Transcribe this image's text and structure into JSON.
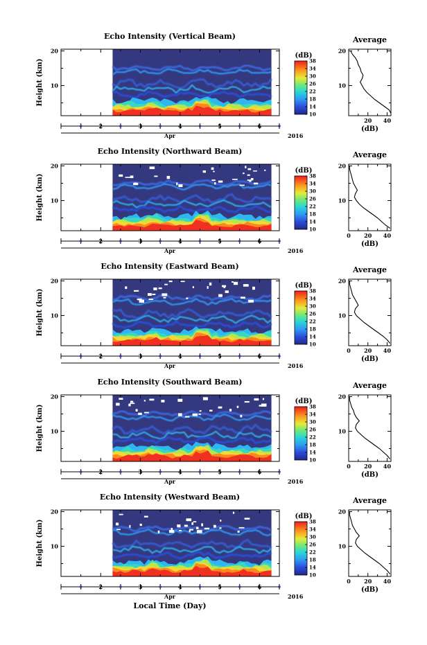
{
  "chart_data": [
    {
      "type": "heatmap",
      "title": "Echo Intensity (Vertical Beam)",
      "ylabel": "Height (km)",
      "x_month": "Apr",
      "x_year": "2016",
      "x_ticks": [
        "2",
        "3",
        "4",
        "5",
        "6"
      ],
      "y_ticks": [
        "10",
        "20"
      ],
      "xlim": [
        1,
        6.5
      ],
      "ylim": [
        1.3,
        20.5
      ],
      "data_start": 2.3,
      "data_end": 6.3,
      "colorbar": {
        "unit": "(dB)",
        "ticks": [
          "10",
          "14",
          "18",
          "22",
          "26",
          "30",
          "34",
          "38"
        ],
        "range": [
          10,
          38
        ]
      },
      "average": {
        "title": "Average",
        "xlabel": "(dB)",
        "x_ticks": [
          "20",
          "40"
        ],
        "y_ticks": [
          "10",
          "20"
        ],
        "xlim": [
          0,
          44
        ],
        "profile": [
          [
            20,
            2
          ],
          [
            19,
            4
          ],
          [
            18,
            7
          ],
          [
            17,
            9
          ],
          [
            16,
            10
          ],
          [
            15,
            12
          ],
          [
            14,
            13
          ],
          [
            13.5,
            14
          ],
          [
            13,
            15
          ],
          [
            12,
            14
          ],
          [
            11,
            12
          ],
          [
            10,
            14
          ],
          [
            9,
            16
          ],
          [
            8,
            19
          ],
          [
            7,
            23
          ],
          [
            6,
            27
          ],
          [
            5,
            32
          ],
          [
            4,
            37
          ],
          [
            3,
            42
          ],
          [
            2,
            44
          ]
        ]
      }
    },
    {
      "type": "heatmap",
      "title": "Echo Intensity (Northward Beam)",
      "ylabel": "Height (km)",
      "x_month": "Apr",
      "x_year": "2016",
      "x_ticks": [
        "2",
        "3",
        "4",
        "5",
        "6"
      ],
      "y_ticks": [
        "10",
        "20"
      ],
      "xlim": [
        1,
        6.5
      ],
      "ylim": [
        1.3,
        20.5
      ],
      "data_start": 2.3,
      "data_end": 6.3,
      "colorbar": {
        "unit": "(dB)",
        "ticks": [
          "10",
          "14",
          "18",
          "22",
          "26",
          "30",
          "34",
          "38"
        ],
        "range": [
          10,
          38
        ]
      },
      "average": {
        "title": "Average",
        "xlabel": "(dB)",
        "x_ticks": [
          "0",
          "20",
          "40"
        ],
        "y_ticks": [
          "10",
          "20"
        ],
        "xlim": [
          0,
          44
        ],
        "profile": [
          [
            20,
            1
          ],
          [
            19,
            1
          ],
          [
            18,
            2
          ],
          [
            17,
            3
          ],
          [
            16,
            4
          ],
          [
            15,
            5
          ],
          [
            14,
            7
          ],
          [
            13,
            9
          ],
          [
            12,
            7
          ],
          [
            11,
            6
          ],
          [
            10,
            8
          ],
          [
            9,
            11
          ],
          [
            8,
            15
          ],
          [
            7,
            20
          ],
          [
            6,
            25
          ],
          [
            5,
            30
          ],
          [
            4,
            34
          ],
          [
            3,
            38
          ],
          [
            2,
            43
          ]
        ]
      }
    },
    {
      "type": "heatmap",
      "title": "Echo Intensity (Eastward Beam)",
      "ylabel": "Height (km)",
      "x_month": "Apr",
      "x_year": "2016",
      "x_ticks": [
        "2",
        "3",
        "4",
        "5",
        "6"
      ],
      "y_ticks": [
        "10",
        "20"
      ],
      "xlim": [
        1,
        6.5
      ],
      "ylim": [
        1.3,
        20.5
      ],
      "data_start": 2.3,
      "data_end": 6.3,
      "colorbar": {
        "unit": "(dB)",
        "ticks": [
          "10",
          "14",
          "18",
          "22",
          "26",
          "30",
          "34",
          "38"
        ],
        "range": [
          10,
          38
        ]
      },
      "average": {
        "title": "Average",
        "xlabel": "(dB)",
        "x_ticks": [
          "0",
          "20",
          "40"
        ],
        "y_ticks": [
          "10",
          "20"
        ],
        "xlim": [
          0,
          44
        ],
        "profile": [
          [
            20,
            1
          ],
          [
            19,
            1
          ],
          [
            18,
            2
          ],
          [
            17,
            3
          ],
          [
            16,
            4
          ],
          [
            15,
            6
          ],
          [
            14,
            8
          ],
          [
            13,
            10
          ],
          [
            12,
            7
          ],
          [
            11,
            6
          ],
          [
            10,
            8
          ],
          [
            9,
            12
          ],
          [
            8,
            16
          ],
          [
            7,
            21
          ],
          [
            6,
            26
          ],
          [
            5,
            31
          ],
          [
            4,
            36
          ],
          [
            3,
            40
          ],
          [
            2,
            43
          ]
        ]
      }
    },
    {
      "type": "heatmap",
      "title": "Echo Intensity (Southward Beam)",
      "ylabel": "Height (km)",
      "x_month": "Apr",
      "x_year": "2016",
      "x_ticks": [
        "2",
        "3",
        "4",
        "5",
        "6"
      ],
      "y_ticks": [
        "10",
        "20"
      ],
      "xlim": [
        1,
        6.5
      ],
      "ylim": [
        1.3,
        20.5
      ],
      "data_start": 2.3,
      "data_end": 6.3,
      "colorbar": {
        "unit": "(dB)",
        "ticks": [
          "10",
          "14",
          "18",
          "22",
          "26",
          "30",
          "34",
          "38"
        ],
        "range": [
          10,
          38
        ]
      },
      "average": {
        "title": "Average",
        "xlabel": "(dB)",
        "x_ticks": [
          "0",
          "20",
          "40"
        ],
        "y_ticks": [
          "10",
          "20"
        ],
        "xlim": [
          0,
          44
        ],
        "profile": [
          [
            20,
            1
          ],
          [
            19,
            1
          ],
          [
            18,
            2
          ],
          [
            17,
            3
          ],
          [
            16,
            5
          ],
          [
            15,
            6
          ],
          [
            14,
            8
          ],
          [
            13,
            11
          ],
          [
            12,
            8
          ],
          [
            11,
            7
          ],
          [
            10,
            9
          ],
          [
            9,
            13
          ],
          [
            8,
            17
          ],
          [
            7,
            22
          ],
          [
            6,
            27
          ],
          [
            5,
            32
          ],
          [
            4,
            36
          ],
          [
            3,
            40
          ],
          [
            2,
            43
          ]
        ]
      }
    },
    {
      "type": "heatmap",
      "title": "Echo Intensity (Westward Beam)",
      "ylabel": "Height (km)",
      "x_month": "Apr",
      "x_year": "2016",
      "x_ticks": [
        "2",
        "3",
        "4",
        "5",
        "6"
      ],
      "y_ticks": [
        "10",
        "20"
      ],
      "xlim": [
        1,
        6.5
      ],
      "ylim": [
        1.3,
        20.5
      ],
      "data_start": 2.3,
      "data_end": 6.3,
      "colorbar": {
        "unit": "(dB)",
        "ticks": [
          "10",
          "14",
          "18",
          "22",
          "26",
          "30",
          "34",
          "38"
        ],
        "range": [
          10,
          38
        ]
      },
      "average": {
        "title": "Average",
        "xlabel": "(dB)",
        "x_ticks": [
          "0",
          "20",
          "40"
        ],
        "y_ticks": [
          "10",
          "20"
        ],
        "xlim": [
          0,
          44
        ],
        "profile": [
          [
            20,
            1
          ],
          [
            19,
            1
          ],
          [
            18,
            2
          ],
          [
            17,
            3
          ],
          [
            16,
            4
          ],
          [
            15,
            6
          ],
          [
            14,
            8
          ],
          [
            13,
            11
          ],
          [
            12,
            8
          ],
          [
            11,
            7
          ],
          [
            10,
            9
          ],
          [
            9,
            13
          ],
          [
            8,
            17
          ],
          [
            7,
            22
          ],
          [
            6,
            27
          ],
          [
            5,
            32
          ],
          [
            4,
            36
          ],
          [
            3,
            40
          ],
          [
            2,
            43
          ]
        ]
      }
    }
  ],
  "figure": {
    "xlabel": "Local Time (Day)"
  }
}
